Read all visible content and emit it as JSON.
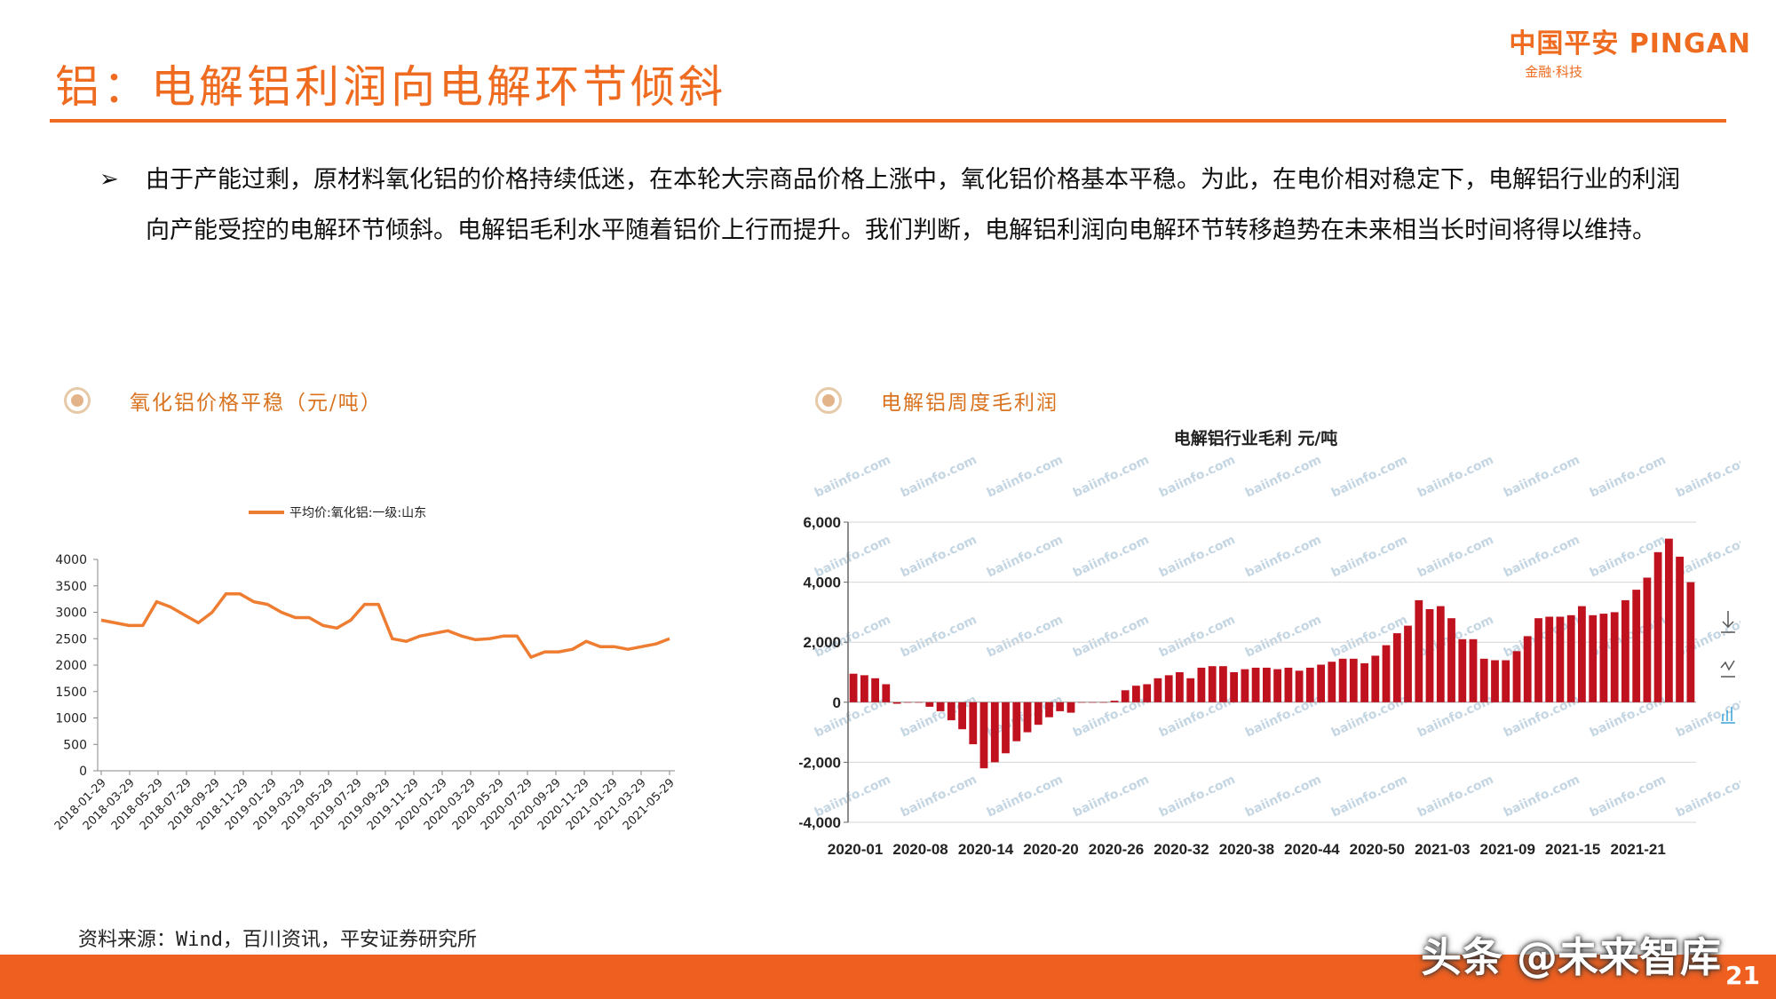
{
  "header": {
    "title": "铝：电解铝利润向电解环节倾斜",
    "logo_main": "中国平安 PINGAN",
    "logo_sub": "金融·科技"
  },
  "bullet": {
    "marker": "➢",
    "text": "由于产能过剩，原材料氧化铝的价格持续低迷，在本轮大宗商品价格上涨中，氧化铝价格基本平稳。为此，在电价相对稳定下，电解铝行业的利润向产能受控的电解环节倾斜。电解铝毛利水平随着铝价上行而提升。我们判断，电解铝利润向电解环节转移趋势在未来相当长时间将得以维持。"
  },
  "charts": {
    "left_heading": "氧化铝价格平稳（元/吨）",
    "right_heading": "电解铝周度毛利润"
  },
  "chart_data": [
    {
      "type": "line",
      "legend": "平均价:氧化铝:一级:山东",
      "legend_position": "top",
      "color": "#ee7d31",
      "ylim": [
        0,
        4000
      ],
      "yticks": [
        "0",
        "500",
        "1000",
        "1500",
        "2000",
        "2500",
        "3000",
        "3500",
        "4000"
      ],
      "xticks": [
        "2018-01-29",
        "2018-03-29",
        "2018-05-29",
        "2018-07-29",
        "2018-09-29",
        "2018-11-29",
        "2019-01-29",
        "2019-03-29",
        "2019-05-29",
        "2019-07-29",
        "2019-09-29",
        "2019-11-29",
        "2020-01-29",
        "2020-03-29",
        "2020-05-29",
        "2020-07-29",
        "2020-09-29",
        "2020-11-29",
        "2021-01-29",
        "2021-03-29",
        "2021-05-29"
      ],
      "grid": false,
      "x": [
        "2018-01",
        "2018-02",
        "2018-03",
        "2018-04",
        "2018-05",
        "2018-06",
        "2018-07",
        "2018-08",
        "2018-09",
        "2018-10",
        "2018-11",
        "2018-12",
        "2019-01",
        "2019-02",
        "2019-03",
        "2019-04",
        "2019-05",
        "2019-06",
        "2019-07",
        "2019-08",
        "2019-09",
        "2019-10",
        "2019-11",
        "2019-12",
        "2020-01",
        "2020-02",
        "2020-03",
        "2020-04",
        "2020-05",
        "2020-06",
        "2020-07",
        "2020-08",
        "2020-09",
        "2020-10",
        "2020-11",
        "2020-12",
        "2021-01",
        "2021-02",
        "2021-03",
        "2021-04",
        "2021-05",
        "2021-06"
      ],
      "values": [
        2850,
        2800,
        2750,
        2750,
        3200,
        3100,
        2950,
        2800,
        3000,
        3350,
        3350,
        3200,
        3150,
        3000,
        2900,
        2900,
        2750,
        2700,
        2850,
        3150,
        3150,
        2500,
        2450,
        2550,
        2600,
        2650,
        2550,
        2480,
        2500,
        2550,
        2550,
        2150,
        2250,
        2250,
        2300,
        2450,
        2350,
        2350,
        2300,
        2350,
        2400,
        2500
      ]
    },
    {
      "type": "bar",
      "title": "电解铝行业毛利  元/吨",
      "color": "#c0111f",
      "ylim": [
        -4000,
        6000
      ],
      "yticks": [
        "-4,000",
        "-2,000",
        "0",
        "2,000",
        "4,000",
        "6,000"
      ],
      "xticks": [
        "2020-01",
        "2020-08",
        "2020-14",
        "2020-20",
        "2020-26",
        "2020-32",
        "2020-38",
        "2020-44",
        "2020-50",
        "2021-03",
        "2021-09",
        "2021-15",
        "2021-21"
      ],
      "grid": true,
      "values": [
        950,
        900,
        800,
        600,
        -50,
        0,
        0,
        -150,
        -300,
        -600,
        -900,
        -1400,
        -2200,
        -2000,
        -1700,
        -1300,
        -1000,
        -750,
        -500,
        -300,
        -350,
        0,
        0,
        0,
        50,
        400,
        550,
        600,
        800,
        900,
        1000,
        800,
        1150,
        1200,
        1200,
        1000,
        1100,
        1150,
        1150,
        1100,
        1150,
        1050,
        1150,
        1250,
        1350,
        1450,
        1450,
        1300,
        1550,
        1900,
        2300,
        2550,
        3400,
        3100,
        3200,
        2800,
        2100,
        2100,
        1450,
        1400,
        1400,
        1700,
        2200,
        2800,
        2850,
        2850,
        2900,
        3200,
        2900,
        2950,
        3000,
        3400,
        3750,
        4150,
        5000,
        5450,
        4850,
        4000
      ]
    }
  ],
  "source": "资料来源：Wind，百川资讯，平安证券研究所",
  "footer": {
    "page_number": "21",
    "watermark": "头条 @未来智库"
  }
}
